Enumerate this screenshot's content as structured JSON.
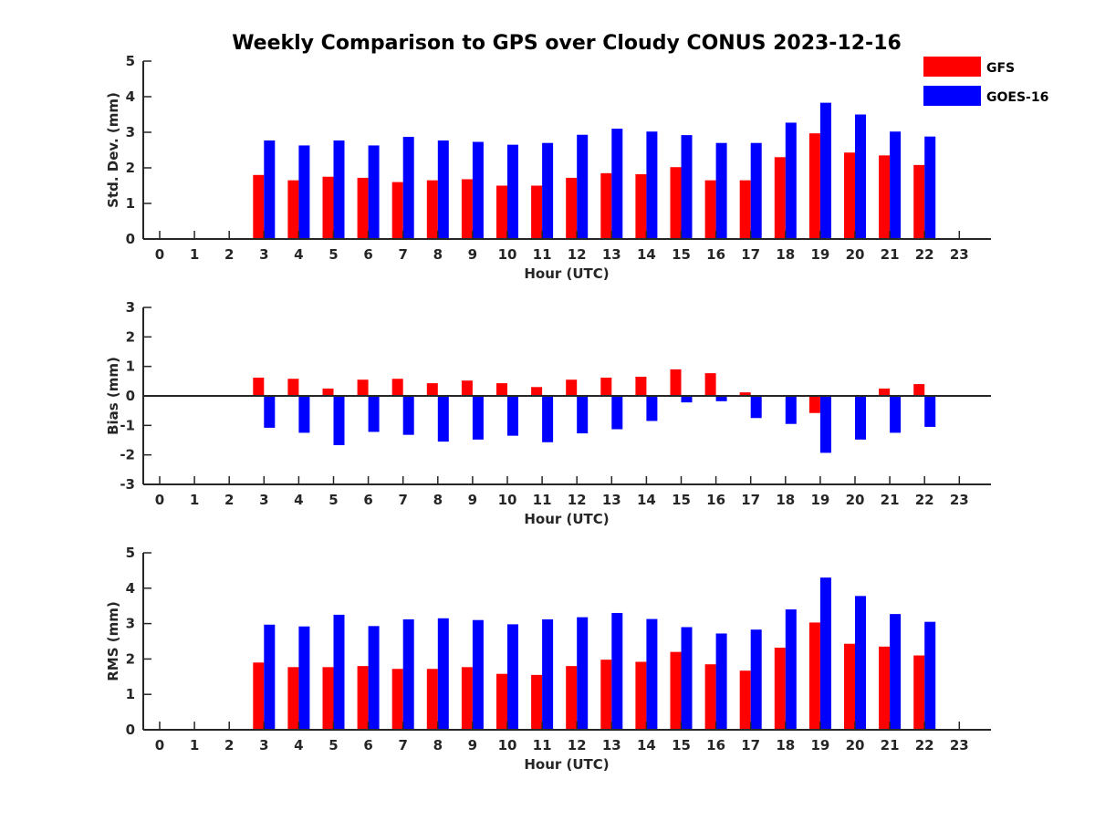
{
  "colors": {
    "gfs": "#ff0000",
    "goes": "#0000ff",
    "axis": "#262626"
  },
  "legend": {
    "placement": "top-right",
    "items": [
      {
        "name": "GFS",
        "color": "#ff0000"
      },
      {
        "name": "GOES-16",
        "color": "#0000ff"
      }
    ]
  },
  "chart_data": {
    "type": "bar",
    "title": "Weekly Comparison to GPS over Cloudy CONUS 2023-12-16",
    "categories": [
      "0",
      "1",
      "2",
      "3",
      "4",
      "5",
      "6",
      "7",
      "8",
      "9",
      "10",
      "11",
      "12",
      "13",
      "14",
      "15",
      "16",
      "17",
      "18",
      "19",
      "20",
      "21",
      "22",
      "23"
    ],
    "xlabel": "Hour (UTC)",
    "grid": false,
    "panels": [
      {
        "ylabel": "Std. Dev. (mm)",
        "ylim": [
          0,
          5
        ],
        "yticks": [
          "0",
          "1",
          "2",
          "3",
          "4",
          "5"
        ],
        "series": [
          {
            "name": "GFS",
            "values": [
              null,
              null,
              null,
              1.8,
              1.65,
              1.75,
              1.72,
              1.6,
              1.65,
              1.68,
              1.5,
              1.5,
              1.72,
              1.85,
              1.82,
              2.02,
              1.65,
              1.65,
              2.3,
              2.97,
              2.43,
              2.35,
              2.08,
              null
            ]
          },
          {
            "name": "GOES-16",
            "values": [
              null,
              null,
              null,
              2.77,
              2.63,
              2.77,
              2.63,
              2.87,
              2.77,
              2.73,
              2.65,
              2.7,
              2.93,
              3.1,
              3.02,
              2.92,
              2.7,
              2.7,
              3.27,
              3.83,
              3.5,
              3.02,
              2.88,
              null
            ]
          }
        ]
      },
      {
        "ylabel": "Bias (mm)",
        "ylim": [
          -3,
          3
        ],
        "yticks": [
          "-3",
          "-2",
          "-1",
          "0",
          "1",
          "2",
          "3"
        ],
        "series": [
          {
            "name": "GFS",
            "values": [
              null,
              null,
              null,
              0.62,
              0.58,
              0.25,
              0.55,
              0.58,
              0.43,
              0.52,
              0.43,
              0.3,
              0.55,
              0.62,
              0.65,
              0.9,
              0.77,
              0.12,
              0.02,
              -0.58,
              0.0,
              0.25,
              0.4,
              null
            ]
          },
          {
            "name": "GOES-16",
            "values": [
              null,
              null,
              null,
              -1.08,
              -1.25,
              -1.67,
              -1.22,
              -1.32,
              -1.55,
              -1.48,
              -1.35,
              -1.57,
              -1.27,
              -1.13,
              -0.85,
              -0.22,
              -0.18,
              -0.75,
              -0.95,
              -1.93,
              -1.48,
              -1.25,
              -1.05,
              null
            ]
          }
        ]
      },
      {
        "ylabel": "RMS (mm)",
        "ylim": [
          0,
          5
        ],
        "yticks": [
          "0",
          "1",
          "2",
          "3",
          "4",
          "5"
        ],
        "series": [
          {
            "name": "GFS",
            "values": [
              null,
              null,
              null,
              1.9,
              1.77,
              1.77,
              1.8,
              1.72,
              1.72,
              1.77,
              1.58,
              1.55,
              1.8,
              1.98,
              1.92,
              2.2,
              1.85,
              1.67,
              2.32,
              3.03,
              2.43,
              2.35,
              2.1,
              null
            ]
          },
          {
            "name": "GOES-16",
            "values": [
              null,
              null,
              null,
              2.97,
              2.92,
              3.25,
              2.93,
              3.12,
              3.15,
              3.1,
              2.98,
              3.12,
              3.18,
              3.3,
              3.13,
              2.9,
              2.72,
              2.83,
              3.4,
              4.3,
              3.78,
              3.27,
              3.05,
              null
            ]
          }
        ]
      }
    ]
  }
}
